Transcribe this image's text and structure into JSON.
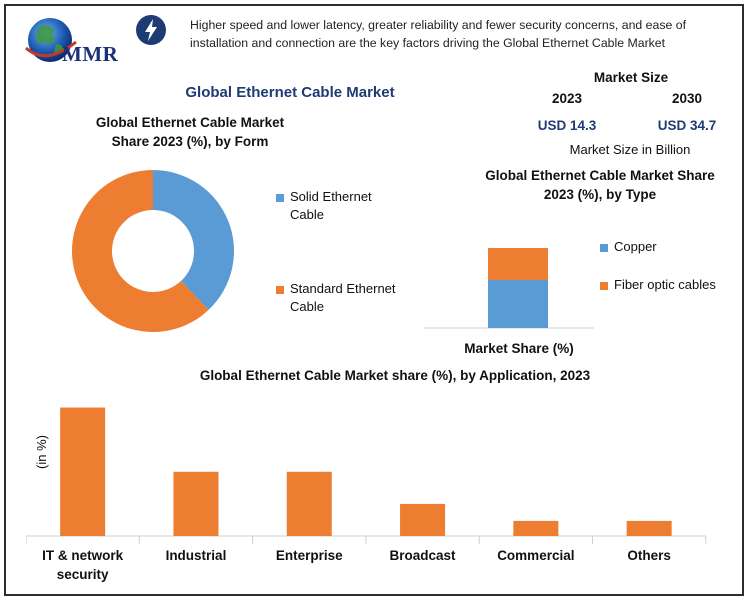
{
  "brand": {
    "logo_text": "MMR",
    "icon_name": "lightning-bolt-icon"
  },
  "headline": "Higher speed and lower latency, greater reliability and fewer security concerns, and ease of installation and connection are the key factors driving the Global Ethernet Cable Market",
  "main_title": "Global Ethernet Cable Market",
  "market_size": {
    "label": "Market Size",
    "year_start": "2023",
    "year_end": "2030",
    "value_start": "USD 14.3",
    "value_end": "USD 34.7",
    "unit_note": "Market Size in Billion"
  },
  "colors": {
    "blue": "#5b9bd5",
    "orange": "#ed7d31",
    "title_blue": "#1f3b73"
  },
  "chart_data": [
    {
      "type": "pie",
      "title_line1": "Global Ethernet Cable Market",
      "title_line2": "Share 2023 (%), by Form",
      "donut": true,
      "labels": [
        "Solid Ethernet Cable",
        "Standard Ethernet Cable"
      ],
      "legend_lines": [
        [
          "Solid Ethernet",
          "Cable"
        ],
        [
          "Standard Ethernet",
          "Cable"
        ]
      ],
      "values": [
        38,
        62
      ],
      "colors": [
        "#5b9bd5",
        "#ed7d31"
      ],
      "legend_position": "right"
    },
    {
      "type": "bar",
      "stacked": true,
      "title_line1": "Global Ethernet Cable Market Share",
      "title_line2": "2023 (%), by Type",
      "xlabel": "Market Share (%)",
      "categories": [
        ""
      ],
      "series": [
        {
          "name": "Copper",
          "values": [
            60
          ],
          "color": "#5b9bd5"
        },
        {
          "name": "Fiber optic cables",
          "values": [
            40
          ],
          "color": "#ed7d31"
        }
      ],
      "ylim": [
        0,
        100
      ],
      "legend_position": "right"
    },
    {
      "type": "bar",
      "title": "Global Ethernet Cable Market share (%), by Application, 2023",
      "ylabel": "(in %)",
      "categories": [
        [
          "IT & network",
          "security"
        ],
        [
          "Industrial"
        ],
        [
          "Enterprise"
        ],
        [
          "Broadcast"
        ],
        [
          "Commercial"
        ],
        [
          "Others"
        ]
      ],
      "values": [
        34,
        17,
        17,
        8.5,
        4,
        4
      ],
      "ylim": [
        0,
        36
      ],
      "color": "#ed7d31",
      "grid": false
    }
  ]
}
